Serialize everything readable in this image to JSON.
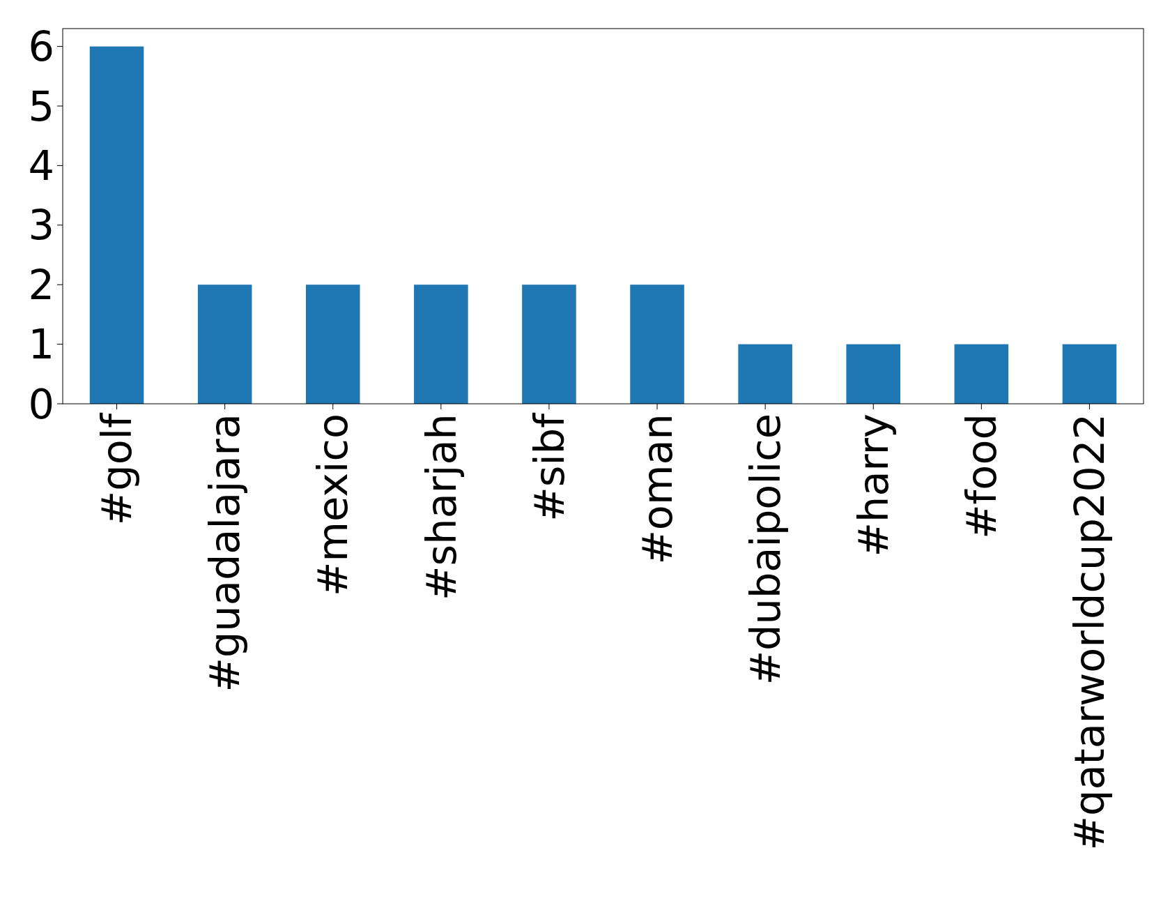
{
  "chart_data": {
    "type": "bar",
    "categories": [
      "#golf",
      "#guadalajara",
      "#mexico",
      "#sharjah",
      "#sibf",
      "#oman",
      "#dubaipolice",
      "#harry",
      "#food",
      "#qatarworldcup2022"
    ],
    "values": [
      6,
      2,
      2,
      2,
      2,
      2,
      1,
      1,
      1,
      1
    ],
    "color": "#1f77b4",
    "ylim": [
      0,
      6.3
    ],
    "yticks": [
      0,
      1,
      2,
      3,
      4,
      5,
      6
    ],
    "grid": false
  }
}
